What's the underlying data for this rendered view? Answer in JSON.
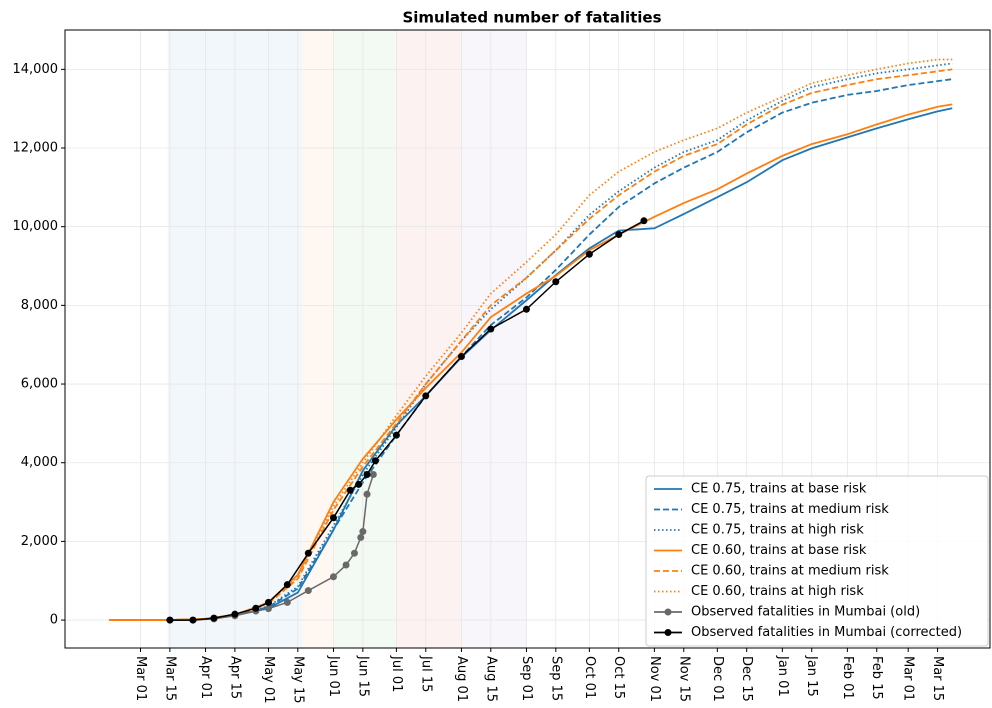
{
  "chart_data": {
    "type": "line",
    "title": "Simulated number of fatalities",
    "xlim": [
      -36,
      405
    ],
    "ylim": [
      -710,
      15000
    ],
    "xticks": [
      {
        "value": 0,
        "label": "Mar 01"
      },
      {
        "value": 14,
        "label": "Mar 15"
      },
      {
        "value": 31,
        "label": "Apr 01"
      },
      {
        "value": 45,
        "label": "Apr 15"
      },
      {
        "value": 61,
        "label": "May 01"
      },
      {
        "value": 75,
        "label": "May 15"
      },
      {
        "value": 92,
        "label": "Jun 01"
      },
      {
        "value": 106,
        "label": "Jun 15"
      },
      {
        "value": 122,
        "label": "Jul 01"
      },
      {
        "value": 136,
        "label": "Jul 15"
      },
      {
        "value": 153,
        "label": "Aug 01"
      },
      {
        "value": 167,
        "label": "Aug 15"
      },
      {
        "value": 184,
        "label": "Sep 01"
      },
      {
        "value": 198,
        "label": "Sep 15"
      },
      {
        "value": 214,
        "label": "Oct 01"
      },
      {
        "value": 228,
        "label": "Oct 15"
      },
      {
        "value": 245,
        "label": "Nov 01"
      },
      {
        "value": 259,
        "label": "Nov 15"
      },
      {
        "value": 275,
        "label": "Dec 01"
      },
      {
        "value": 289,
        "label": "Dec 15"
      },
      {
        "value": 306,
        "label": "Jan 01"
      },
      {
        "value": 320,
        "label": "Jan 15"
      },
      {
        "value": 337,
        "label": "Feb 01"
      },
      {
        "value": 351,
        "label": "Feb 15"
      },
      {
        "value": 366,
        "label": "Mar 01"
      },
      {
        "value": 380,
        "label": "Mar 15"
      }
    ],
    "yticks": [
      0,
      {
        "value": 2000,
        "label": "2,000"
      },
      {
        "value": 4000,
        "label": "4,000"
      },
      {
        "value": 6000,
        "label": "6,000"
      },
      {
        "value": 8000,
        "label": "8,000"
      },
      {
        "value": 10000,
        "label": "10,000"
      },
      {
        "value": 12000,
        "label": "12,000"
      },
      {
        "value": 14000,
        "label": "14,000"
      }
    ],
    "grid": true,
    "legend": "lower right",
    "phases": [
      {
        "start": 13,
        "end": 77,
        "color": "#1f77b4"
      },
      {
        "start": 77,
        "end": 92,
        "color": "#ff7f0e"
      },
      {
        "start": 92,
        "end": 122,
        "color": "#2ca02c"
      },
      {
        "start": 122,
        "end": 153,
        "color": "#d62728"
      },
      {
        "start": 153,
        "end": 184,
        "color": "#9467bd"
      }
    ],
    "series": [
      {
        "name": "CE 0.75, trains at base risk",
        "color": "#1f77b4",
        "dash": "solid",
        "x": [
          -15,
          14,
          31,
          45,
          61,
          75,
          92,
          106,
          122,
          136,
          153,
          167,
          184,
          198,
          214,
          228,
          245,
          259,
          275,
          289,
          306,
          320,
          337,
          351,
          366,
          380,
          387
        ],
        "values": [
          0,
          0,
          30,
          120,
          300,
          700,
          2290,
          3800,
          4950,
          5700,
          6680,
          7370,
          8130,
          8770,
          9450,
          9900,
          9960,
          10320,
          10750,
          11130,
          11690,
          11990,
          12270,
          12500,
          12730,
          12930,
          13010
        ]
      },
      {
        "name": "CE 0.75, trains at medium risk",
        "color": "#1f77b4",
        "dash": "dashed",
        "x": [
          -15,
          14,
          31,
          45,
          61,
          75,
          92,
          106,
          122,
          136,
          153,
          167,
          184,
          198,
          214,
          228,
          245,
          259,
          275,
          289,
          306,
          320,
          337,
          351,
          366,
          380,
          387
        ],
        "values": [
          0,
          0,
          30,
          120,
          330,
          800,
          2300,
          3500,
          4700,
          5700,
          6700,
          7500,
          8200,
          8900,
          9800,
          10500,
          11100,
          11500,
          11900,
          12400,
          12900,
          13150,
          13350,
          13450,
          13600,
          13700,
          13750
        ]
      },
      {
        "name": "CE 0.75, trains at high risk",
        "color": "#1f77b4",
        "dash": "dotted",
        "x": [
          -15,
          14,
          31,
          45,
          61,
          75,
          92,
          106,
          122,
          136,
          153,
          167,
          184,
          198,
          214,
          228,
          245,
          259,
          275,
          289,
          306,
          320,
          337,
          351,
          366,
          380,
          387
        ],
        "values": [
          0,
          0,
          30,
          130,
          350,
          850,
          2400,
          3700,
          4900,
          6000,
          7100,
          7900,
          8700,
          9400,
          10300,
          10900,
          11500,
          11900,
          12200,
          12700,
          13200,
          13550,
          13750,
          13900,
          14000,
          14100,
          14150
        ]
      },
      {
        "name": "CE 0.60, trains at base risk",
        "color": "#ff7f0e",
        "dash": "solid",
        "x": [
          -15,
          14,
          31,
          45,
          61,
          75,
          92,
          106,
          122,
          136,
          153,
          167,
          184,
          198,
          214,
          228,
          245,
          259,
          275,
          289,
          306,
          320,
          337,
          351,
          366,
          380,
          387
        ],
        "values": [
          0,
          0,
          30,
          130,
          450,
          1150,
          3000,
          4100,
          5100,
          5900,
          6800,
          7700,
          8300,
          8750,
          9400,
          9800,
          10250,
          10600,
          10950,
          11350,
          11800,
          12100,
          12350,
          12600,
          12850,
          13050,
          13110
        ]
      },
      {
        "name": "CE 0.60, trains at medium risk",
        "color": "#ff7f0e",
        "dash": "dashed",
        "x": [
          -15,
          14,
          31,
          45,
          61,
          75,
          92,
          106,
          122,
          136,
          153,
          167,
          184,
          198,
          214,
          228,
          245,
          259,
          275,
          289,
          306,
          320,
          337,
          351,
          366,
          380,
          387
        ],
        "values": [
          0,
          0,
          30,
          140,
          420,
          1050,
          2800,
          3900,
          5000,
          6000,
          7100,
          8000,
          8700,
          9400,
          10200,
          10800,
          11400,
          11800,
          12100,
          12600,
          13100,
          13400,
          13600,
          13750,
          13850,
          13950,
          14000
        ]
      },
      {
        "name": "CE 0.60, trains at high risk",
        "color": "#ff7f0e",
        "dash": "dotted",
        "x": [
          -15,
          14,
          31,
          45,
          61,
          75,
          92,
          106,
          122,
          136,
          153,
          167,
          184,
          198,
          214,
          228,
          245,
          259,
          275,
          289,
          306,
          320,
          337,
          351,
          366,
          380,
          387
        ],
        "values": [
          0,
          0,
          30,
          140,
          440,
          1100,
          2900,
          4000,
          5200,
          6200,
          7300,
          8300,
          9100,
          9800,
          10800,
          11400,
          11900,
          12200,
          12500,
          12900,
          13300,
          13650,
          13850,
          14000,
          14150,
          14250,
          14250
        ]
      },
      {
        "name": "Observed fatalities in Mumbai (old)",
        "color": "#696969",
        "dash": "solid",
        "marker": true,
        "x": [
          14,
          25,
          35,
          45,
          55,
          61,
          70,
          80,
          92,
          98,
          102,
          105,
          106,
          108,
          111
        ],
        "values": [
          0,
          0,
          30,
          110,
          230,
          290,
          450,
          750,
          1100,
          1400,
          1700,
          2100,
          2250,
          3200,
          3700
        ]
      },
      {
        "name": "Observed fatalities in Mumbai (corrected)",
        "color": "#000000",
        "dash": "solid",
        "marker": true,
        "x": [
          14,
          25,
          35,
          45,
          55,
          61,
          70,
          80,
          92,
          100,
          104,
          108,
          112,
          122,
          136,
          153,
          167,
          184,
          198,
          214,
          228,
          240
        ],
        "values": [
          0,
          0,
          50,
          150,
          300,
          450,
          900,
          1700,
          2600,
          3300,
          3450,
          3700,
          4050,
          4700,
          5700,
          6700,
          7400,
          7900,
          8600,
          9300,
          9800,
          10150
        ]
      }
    ]
  }
}
